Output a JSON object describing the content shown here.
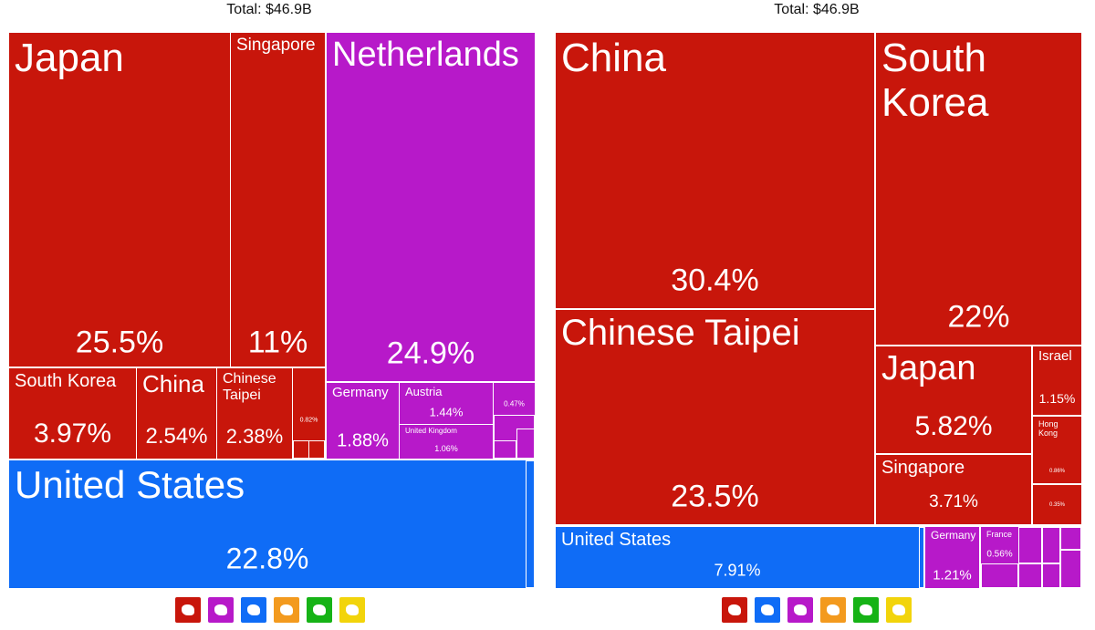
{
  "chart_data": [
    {
      "type": "treemap",
      "title": "Total: $46.9B",
      "categories": [
        "Japan",
        "Singapore",
        "Netherlands",
        "South Korea",
        "China",
        "Chinese Taipei",
        null,
        "Germany",
        "Austria",
        "United Kingdom",
        null,
        "United States"
      ],
      "values": [
        25.5,
        11,
        24.9,
        3.97,
        2.54,
        2.38,
        0.82,
        1.88,
        1.44,
        1.06,
        0.47,
        22.8
      ],
      "value_labels": [
        "25.5%",
        "11%",
        "24.9%",
        "3.97%",
        "2.54%",
        "2.38%",
        "0.82%",
        "1.88%",
        "1.44%",
        "1.06%",
        "0.47%",
        "22.8%"
      ],
      "colors": [
        "#c8160b",
        "#c8160b",
        "#b719c9",
        "#c8160b",
        "#c8160b",
        "#c8160b",
        "#c8160b",
        "#b719c9",
        "#b719c9",
        "#b719c9",
        "#b719c9",
        "#0f6cf6"
      ]
    },
    {
      "type": "treemap",
      "title": "Total: $46.9B",
      "categories": [
        "China",
        "South Korea",
        "Chinese Taipei",
        "Japan",
        "Israel",
        "Hong Kong",
        "Singapore",
        null,
        "United States",
        "Germany",
        "France"
      ],
      "values": [
        30.4,
        22,
        23.5,
        5.82,
        1.15,
        0.86,
        3.71,
        0.35,
        7.91,
        1.21,
        0.56
      ],
      "value_labels": [
        "30.4%",
        "22%",
        "23.5%",
        "5.82%",
        "1.15%",
        "0.86%",
        "3.71%",
        "0.35%",
        "7.91%",
        "1.21%",
        "0.56%"
      ],
      "colors": [
        "#c8160b",
        "#c8160b",
        "#c8160b",
        "#c8160b",
        "#c8160b",
        "#c8160b",
        "#c8160b",
        "#c8160b",
        "#0f6cf6",
        "#b719c9",
        "#b719c9"
      ]
    }
  ]
}
